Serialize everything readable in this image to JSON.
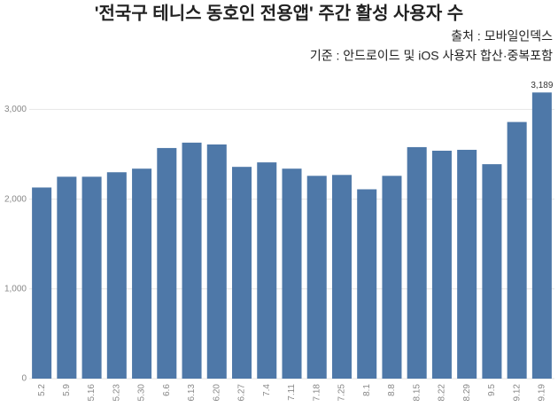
{
  "chart_data": {
    "type": "bar",
    "title": "'전국구 테니스 동호인 전용앱' 주간 활성 사용자 수",
    "source": "출처 : 모바일인덱스",
    "note": "기준 : 안드로이드 및 iOS 사용자 합산·중복포함",
    "categories": [
      "5.2",
      "5.9",
      "5.16",
      "5.23",
      "5.30",
      "6.6",
      "6.13",
      "6.20",
      "6.27",
      "7.4",
      "7.11",
      "7.18",
      "7.25",
      "8.1",
      "8.8",
      "8.15",
      "8.22",
      "8.29",
      "9.5",
      "9.12",
      "9.19"
    ],
    "values": [
      2130,
      2250,
      2250,
      2300,
      2340,
      2570,
      2630,
      2610,
      2360,
      2410,
      2340,
      2260,
      2270,
      2110,
      2260,
      2580,
      2540,
      2550,
      2390,
      2860,
      3189
    ],
    "value_labels": [
      null,
      null,
      null,
      null,
      null,
      null,
      null,
      null,
      null,
      null,
      null,
      null,
      null,
      null,
      null,
      null,
      null,
      null,
      null,
      null,
      "3,189"
    ],
    "color": "#4e78a8",
    "ylim": [
      0,
      3350
    ],
    "yticks": [
      0,
      {
        "value": 1000,
        "label": "1,000"
      },
      {
        "value": 2000,
        "label": "2,000"
      },
      {
        "value": 3000,
        "label": "3,000"
      }
    ],
    "grid": true
  }
}
